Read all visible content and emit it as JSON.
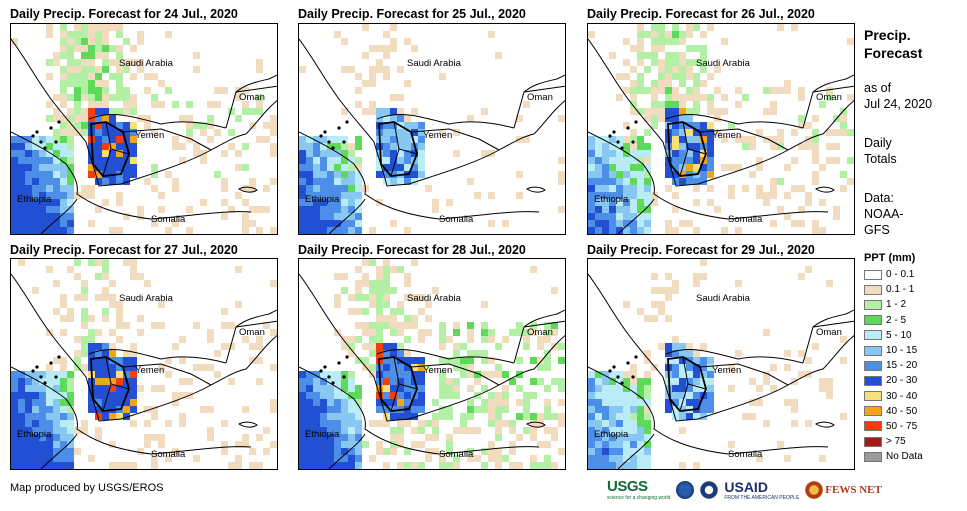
{
  "panels": [
    {
      "title": "Daily Precip. Forecast for 24 Jul., 2020",
      "seed": 11,
      "west": 0.95,
      "yemen": 0.85,
      "north": 0.55,
      "east": 0.15
    },
    {
      "title": "Daily Precip. Forecast for 25 Jul., 2020",
      "seed": 23,
      "west": 0.7,
      "yemen": 0.55,
      "north": 0.2,
      "east": 0.05
    },
    {
      "title": "Daily Precip. Forecast for 26 Jul., 2020",
      "seed": 37,
      "west": 0.55,
      "yemen": 0.75,
      "north": 0.5,
      "east": 0.15
    },
    {
      "title": "Daily Precip. Forecast for 27 Jul., 2020",
      "seed": 41,
      "west": 0.9,
      "yemen": 0.9,
      "north": 0.35,
      "east": 0.1
    },
    {
      "title": "Daily Precip. Forecast for 28 Jul., 2020",
      "seed": 53,
      "west": 0.85,
      "yemen": 0.85,
      "north": 0.4,
      "east": 0.3
    },
    {
      "title": "Daily Precip. Forecast for 29 Jul., 2020",
      "seed": 67,
      "west": 0.5,
      "yemen": 0.55,
      "north": 0.15,
      "east": 0.05
    }
  ],
  "labels": {
    "saudi": "Saudi Arabia",
    "oman": "Oman",
    "yemen": "Yemen",
    "ethiopia": "Ethiopia",
    "somalia": "Somalia"
  },
  "sidebar": {
    "title_line1": "Precip.",
    "title_line2": "Forecast",
    "asof_line1": "as of",
    "asof_line2": "Jul 24, 2020",
    "daily_line1": "Daily",
    "daily_line2": "Totals",
    "data_line1": "Data:",
    "data_line2": "NOAA-",
    "data_line3": "GFS"
  },
  "legend": {
    "title": "PPT (mm)",
    "items": [
      {
        "label": "0 - 0.1",
        "color": "#ffffff"
      },
      {
        "label": "0.1 - 1",
        "color": "#f2dcc0"
      },
      {
        "label": "1 - 2",
        "color": "#b3f0a6"
      },
      {
        "label": "2 - 5",
        "color": "#5fd95a"
      },
      {
        "label": "5 - 10",
        "color": "#b9ecf7"
      },
      {
        "label": "10 - 15",
        "color": "#87c7f2"
      },
      {
        "label": "15 - 20",
        "color": "#4c8ee8"
      },
      {
        "label": "20 - 30",
        "color": "#2350d2"
      },
      {
        "label": "30 - 40",
        "color": "#f6e07a"
      },
      {
        "label": "40 - 50",
        "color": "#f3a31c"
      },
      {
        "label": "50 - 75",
        "color": "#f23e0a"
      },
      {
        "label": "> 75",
        "color": "#a81a1a"
      },
      {
        "label": "No Data",
        "color": "#9a9a9a"
      }
    ]
  },
  "credit": "Map produced by USGS/EROS",
  "logos": {
    "usgs": "USGS",
    "usgs_tag": "science for a changing world",
    "usaid": "USAID",
    "usaid_tag": "FROM THE AMERICAN PEOPLE",
    "fews": "FEWS NET"
  }
}
